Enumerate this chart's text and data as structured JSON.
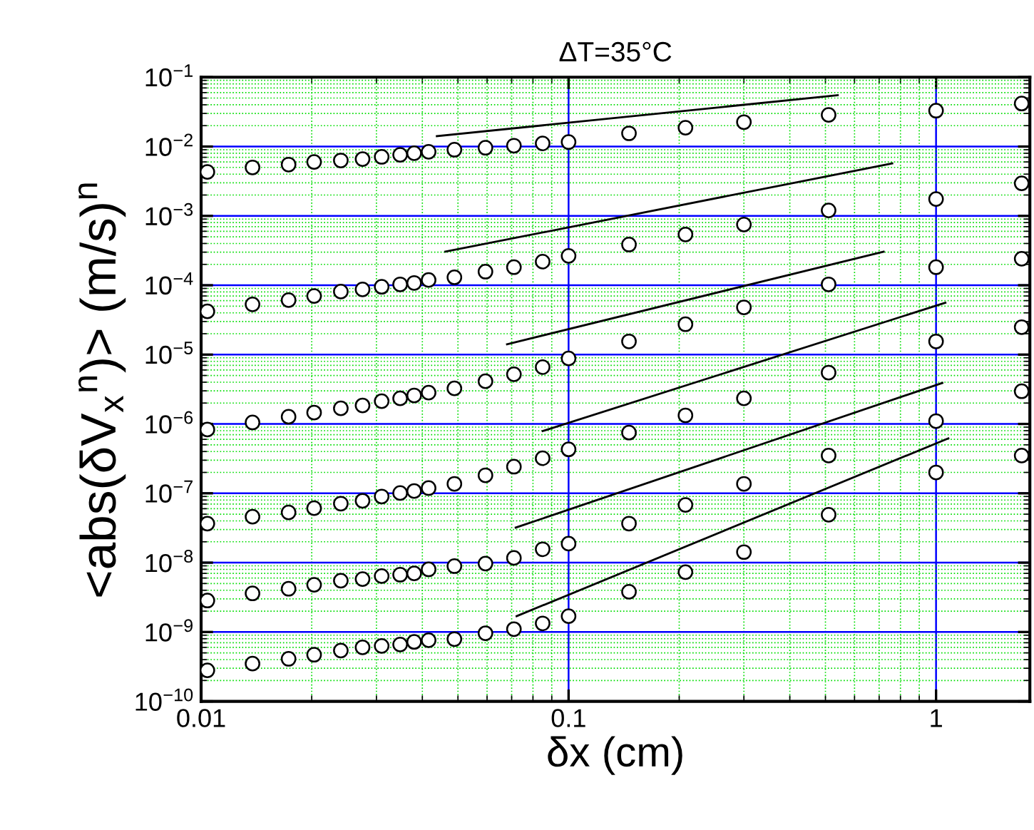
{
  "chart_data": {
    "type": "scatter",
    "title": "ΔT=35°C",
    "xlabel": "δx (cm)",
    "ylabel": "<abs(δV$_{x}$$^{n}$)> (m/s)$^{n}$",
    "log": "xy",
    "grid": true,
    "marker": "circle",
    "xlim": [
      0.01,
      1.8
    ],
    "ylim": [
      1e-10,
      0.1
    ],
    "xticks": [
      0.01,
      0.1,
      1,
      {
        "value": 0.02,
        "label": null
      },
      {
        "value": 0.03,
        "label": null
      },
      {
        "value": 0.04,
        "label": null
      },
      {
        "value": 0.05,
        "label": null
      },
      {
        "value": 0.06,
        "label": null
      },
      {
        "value": 0.07,
        "label": null
      },
      {
        "value": 0.08,
        "label": null
      },
      {
        "value": 0.09,
        "label": null
      },
      {
        "value": 0.2,
        "label": null
      },
      {
        "value": 0.3,
        "label": null
      },
      {
        "value": 0.4,
        "label": null
      },
      {
        "value": 0.5,
        "label": null
      },
      {
        "value": 0.6,
        "label": null
      },
      {
        "value": 0.7,
        "label": null
      },
      {
        "value": 0.8,
        "label": null
      },
      {
        "value": 0.9,
        "label": null
      }
    ],
    "yticks": [
      {
        "value": 1e-10,
        "label": "10$^{−10}$"
      },
      {
        "value": 1e-09,
        "label": "10$^{−9}$"
      },
      {
        "value": 1e-08,
        "label": "10$^{−8}$"
      },
      {
        "value": 1e-07,
        "label": "10$^{−7}$"
      },
      {
        "value": 1e-06,
        "label": "10$^{−6}$"
      },
      {
        "value": 1e-05,
        "label": "10$^{−5}$"
      },
      {
        "value": 0.0001,
        "label": "10$^{−4}$"
      },
      {
        "value": 0.001,
        "label": "10$^{−3}$"
      },
      {
        "value": 0.01,
        "label": "10$^{−2}$"
      },
      {
        "value": 0.1,
        "label": "10$^{−1}$"
      },
      {
        "value": 2e-10,
        "label": null
      },
      {
        "value": 3e-10,
        "label": null
      },
      {
        "value": 4e-10,
        "label": null
      },
      {
        "value": 5e-10,
        "label": null
      },
      {
        "value": 6e-10,
        "label": null
      },
      {
        "value": 7e-10,
        "label": null
      },
      {
        "value": 8e-10,
        "label": null
      },
      {
        "value": 9e-10,
        "label": null
      },
      {
        "value": 2e-09,
        "label": null
      },
      {
        "value": 3e-09,
        "label": null
      },
      {
        "value": 4e-09,
        "label": null
      },
      {
        "value": 5e-09,
        "label": null
      },
      {
        "value": 6e-09,
        "label": null
      },
      {
        "value": 7e-09,
        "label": null
      },
      {
        "value": 8e-09,
        "label": null
      },
      {
        "value": 9e-09,
        "label": null
      },
      {
        "value": 2e-08,
        "label": null
      },
      {
        "value": 3e-08,
        "label": null
      },
      {
        "value": 4e-08,
        "label": null
      },
      {
        "value": 5e-08,
        "label": null
      },
      {
        "value": 6e-08,
        "label": null
      },
      {
        "value": 7e-08,
        "label": null
      },
      {
        "value": 8e-08,
        "label": null
      },
      {
        "value": 9e-08,
        "label": null
      },
      {
        "value": 2e-07,
        "label": null
      },
      {
        "value": 3e-07,
        "label": null
      },
      {
        "value": 4e-07,
        "label": null
      },
      {
        "value": 5e-07,
        "label": null
      },
      {
        "value": 6e-07,
        "label": null
      },
      {
        "value": 7e-07,
        "label": null
      },
      {
        "value": 8e-07,
        "label": null
      },
      {
        "value": 9e-07,
        "label": null
      },
      {
        "value": 2e-06,
        "label": null
      },
      {
        "value": 3e-06,
        "label": null
      },
      {
        "value": 4e-06,
        "label": null
      },
      {
        "value": 5e-06,
        "label": null
      },
      {
        "value": 6e-06,
        "label": null
      },
      {
        "value": 7e-06,
        "label": null
      },
      {
        "value": 8e-06,
        "label": null
      },
      {
        "value": 9e-06,
        "label": null
      },
      {
        "value": 2e-05,
        "label": null
      },
      {
        "value": 3e-05,
        "label": null
      },
      {
        "value": 4e-05,
        "label": null
      },
      {
        "value": 5e-05,
        "label": null
      },
      {
        "value": 6e-05,
        "label": null
      },
      {
        "value": 7e-05,
        "label": null
      },
      {
        "value": 8e-05,
        "label": null
      },
      {
        "value": 9e-05,
        "label": null
      },
      {
        "value": 0.0002,
        "label": null
      },
      {
        "value": 0.0003,
        "label": null
      },
      {
        "value": 0.0004,
        "label": null
      },
      {
        "value": 0.0005,
        "label": null
      },
      {
        "value": 0.0006,
        "label": null
      },
      {
        "value": 0.0007,
        "label": null
      },
      {
        "value": 0.0008,
        "label": null
      },
      {
        "value": 0.0009,
        "label": null
      },
      {
        "value": 0.002,
        "label": null
      },
      {
        "value": 0.003,
        "label": null
      },
      {
        "value": 0.004,
        "label": null
      },
      {
        "value": 0.005,
        "label": null
      },
      {
        "value": 0.006,
        "label": null
      },
      {
        "value": 0.007,
        "label": null
      },
      {
        "value": 0.008,
        "label": null
      },
      {
        "value": 0.009,
        "label": null
      },
      {
        "value": 0.02,
        "label": null
      },
      {
        "value": 0.03,
        "label": null
      },
      {
        "value": 0.04,
        "label": null
      },
      {
        "value": 0.05,
        "label": null
      },
      {
        "value": 0.06,
        "label": null
      },
      {
        "value": 0.07,
        "label": null
      },
      {
        "value": 0.08,
        "label": null
      },
      {
        "value": 0.09,
        "label": null
      }
    ],
    "x": [
      0.0104,
      0.0138,
      0.0173,
      0.0203,
      0.024,
      0.0275,
      0.031,
      0.0348,
      0.038,
      0.0416,
      0.0489,
      0.0594,
      0.071,
      0.085,
      0.1,
      0.146,
      0.208,
      0.3,
      0.51,
      1,
      1.71
    ],
    "series": [
      {
        "color": "#000000",
        "values": [
          0.0043,
          0.005,
          0.0055,
          0.006,
          0.0063,
          0.0066,
          0.0071,
          0.0076,
          0.008,
          0.0084,
          0.009,
          0.0096,
          0.0103,
          0.0111,
          0.0116,
          0.0155,
          0.0187,
          0.0225,
          0.0286,
          0.0329,
          0.0417
        ]
      },
      {
        "color": "#000000",
        "values": [
          4.2e-05,
          5.3e-05,
          6.1e-05,
          7e-05,
          8.1e-05,
          8.7e-05,
          9.5e-05,
          0.000103,
          0.000108,
          0.000119,
          0.00013,
          0.000157,
          0.000182,
          0.000219,
          0.000265,
          0.000386,
          0.00054,
          0.00075,
          0.0012,
          0.00175,
          0.00295
        ]
      },
      {
        "color": "#000000",
        "values": [
          8.3e-07,
          1.05e-06,
          1.27e-06,
          1.46e-06,
          1.68e-06,
          1.85e-06,
          2.13e-06,
          2.34e-06,
          2.58e-06,
          2.83e-06,
          3.26e-06,
          4.13e-06,
          5.2e-06,
          6.6e-06,
          8.8e-06,
          1.55e-05,
          2.74e-05,
          4.8e-05,
          0.000103,
          0.000182,
          0.000241
        ]
      },
      {
        "color": "#000000",
        "values": [
          3.65e-08,
          4.6e-08,
          5.3e-08,
          6.1e-08,
          7.1e-08,
          7.8e-08,
          9e-08,
          1.01e-07,
          1.08e-07,
          1.19e-07,
          1.37e-07,
          1.82e-07,
          2.42e-07,
          3.2e-07,
          4.3e-07,
          7.5e-07,
          1.33e-06,
          2.34e-06,
          5.5e-06,
          1.55e-05,
          2.49e-05
        ]
      },
      {
        "color": "#000000",
        "values": [
          2.84e-09,
          3.6e-09,
          4.2e-09,
          4.8e-09,
          5.5e-09,
          5.8e-09,
          6.4e-09,
          6.7e-09,
          7e-09,
          8e-09,
          8.9e-09,
          9.7e-09,
          1.17e-08,
          1.56e-08,
          1.88e-08,
          3.66e-08,
          6.8e-08,
          1.37e-07,
          3.5e-07,
          1.1e-06,
          2.96e-06
        ]
      },
      {
        "color": "#000000",
        "values": [
          2.8e-10,
          3.5e-10,
          4.1e-10,
          4.7e-10,
          5.4e-10,
          6e-10,
          6.3e-10,
          6.6e-10,
          7.2e-10,
          7.6e-10,
          7.9e-10,
          9.6e-10,
          1.1e-09,
          1.33e-09,
          1.69e-09,
          3.8e-09,
          7.3e-09,
          1.42e-08,
          4.9e-08,
          2e-07,
          3.5e-07
        ]
      },
      {
        "type": "line",
        "marker": "none",
        "color": "#000000",
        "x": [
          0.0438,
          0.54
        ],
        "values": [
          0.0141,
          0.055
        ]
      },
      {
        "type": "line",
        "marker": "none",
        "color": "#000000",
        "x": [
          0.0462,
          0.76
        ],
        "values": [
          0.000305,
          0.0057
        ]
      },
      {
        "type": "line",
        "marker": "none",
        "color": "#000000",
        "x": [
          0.068,
          0.72
        ],
        "values": [
          1.41e-05,
          0.000305
        ]
      },
      {
        "type": "line",
        "marker": "none",
        "color": "#000000",
        "x": [
          0.085,
          1.06
        ],
        "values": [
          7.9e-07,
          5.6e-05
        ]
      },
      {
        "type": "line",
        "marker": "none",
        "color": "#000000",
        "x": [
          0.0718,
          1.04
        ],
        "values": [
          3.2e-08,
          3.9e-06
        ]
      },
      {
        "type": "line",
        "marker": "none",
        "color": "#000000",
        "x": [
          0.0722,
          1.08
        ],
        "values": [
          1.69e-09,
          6.2e-07
        ]
      }
    ]
  }
}
